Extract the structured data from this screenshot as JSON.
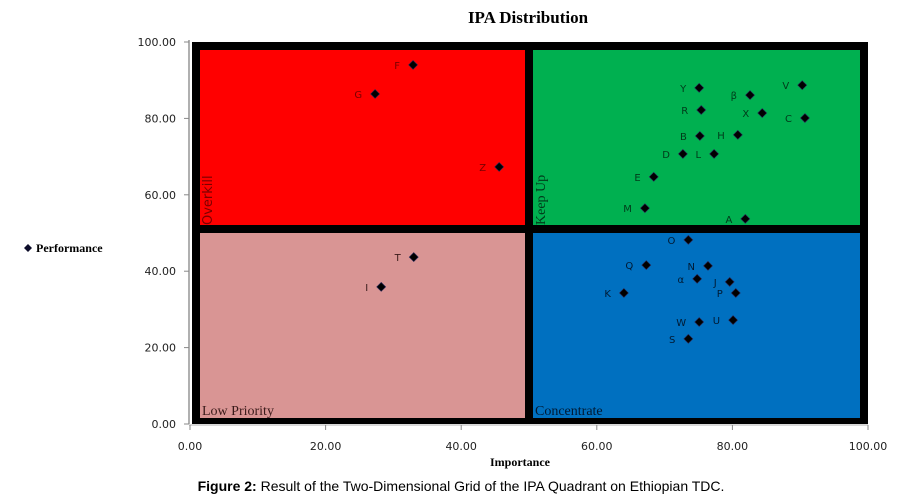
{
  "chart_data": {
    "type": "scatter",
    "title": "IPA Distribution",
    "xlabel": "Importance",
    "ylabel": "",
    "legend": {
      "entries": [
        "Performance"
      ],
      "placement": "left"
    },
    "xlim": [
      0,
      100
    ],
    "ylim": [
      0,
      100
    ],
    "x_ticks": [
      "0.00",
      "20.00",
      "40.00",
      "60.00",
      "80.00",
      "100.00"
    ],
    "y_ticks": [
      "0.00",
      "20.00",
      "40.00",
      "60.00",
      "80.00",
      "100.00"
    ],
    "x_tick_values": [
      0,
      20,
      40,
      60,
      80,
      100
    ],
    "y_tick_values": [
      0,
      20,
      40,
      60,
      80,
      100
    ],
    "grid": false,
    "quadrant_split": {
      "x": 50,
      "y": 50
    },
    "quadrants": [
      {
        "name": "Overkill",
        "color": "#ff0000",
        "label_color": "#7a0000",
        "x_range": [
          0,
          50
        ],
        "y_range": [
          50,
          100
        ]
      },
      {
        "name": "Keep Up",
        "color": "#00b050",
        "label_color": "#003a1a",
        "x_range": [
          50,
          100
        ],
        "y_range": [
          50,
          100
        ]
      },
      {
        "name": "Low Priority",
        "color": "#d99594",
        "label_color": "#3a1a1a",
        "x_range": [
          0,
          50
        ],
        "y_range": [
          0,
          50
        ]
      },
      {
        "name": "Concentrate",
        "color": "#0070c0",
        "label_color": "#001a33",
        "x_range": [
          50,
          100
        ],
        "y_range": [
          0,
          50
        ]
      }
    ],
    "series": [
      {
        "name": "Performance",
        "marker": "diamond",
        "points": [
          {
            "label": "F",
            "x": 32.9,
            "y": 94.0
          },
          {
            "label": "G",
            "x": 27.3,
            "y": 86.4
          },
          {
            "label": "Z",
            "x": 45.6,
            "y": 67.3
          },
          {
            "label": "T",
            "x": 33.0,
            "y": 43.7
          },
          {
            "label": "I",
            "x": 28.2,
            "y": 35.9
          },
          {
            "label": "Y",
            "x": 75.1,
            "y": 88.0
          },
          {
            "label": "β",
            "x": 82.6,
            "y": 86.1
          },
          {
            "label": "V",
            "x": 90.3,
            "y": 88.7
          },
          {
            "label": "R",
            "x": 75.4,
            "y": 82.2
          },
          {
            "label": "X",
            "x": 84.4,
            "y": 81.4
          },
          {
            "label": "C",
            "x": 90.7,
            "y": 80.1
          },
          {
            "label": "B",
            "x": 75.2,
            "y": 75.4
          },
          {
            "label": "H",
            "x": 80.8,
            "y": 75.7
          },
          {
            "label": "D",
            "x": 72.7,
            "y": 70.7
          },
          {
            "label": "L",
            "x": 77.3,
            "y": 70.7
          },
          {
            "label": "E",
            "x": 68.4,
            "y": 64.7
          },
          {
            "label": "M",
            "x": 67.1,
            "y": 56.5
          },
          {
            "label": "A",
            "x": 81.9,
            "y": 53.7
          },
          {
            "label": "O",
            "x": 73.5,
            "y": 48.2
          },
          {
            "label": "Q",
            "x": 67.3,
            "y": 41.6
          },
          {
            "label": "N",
            "x": 76.4,
            "y": 41.4
          },
          {
            "label": "α",
            "x": 74.8,
            "y": 38.0
          },
          {
            "label": "J",
            "x": 79.6,
            "y": 37.2
          },
          {
            "label": "K",
            "x": 64.0,
            "y": 34.3
          },
          {
            "label": "P",
            "x": 80.5,
            "y": 34.3
          },
          {
            "label": "U",
            "x": 80.1,
            "y": 27.2
          },
          {
            "label": "W",
            "x": 75.1,
            "y": 26.7
          },
          {
            "label": "S",
            "x": 73.5,
            "y": 22.3
          }
        ]
      }
    ]
  },
  "caption": {
    "prefix": "Figure 2:",
    "text": " Result of the Two-Dimensional Grid of the IPA Quadrant on Ethiopian TDC."
  }
}
